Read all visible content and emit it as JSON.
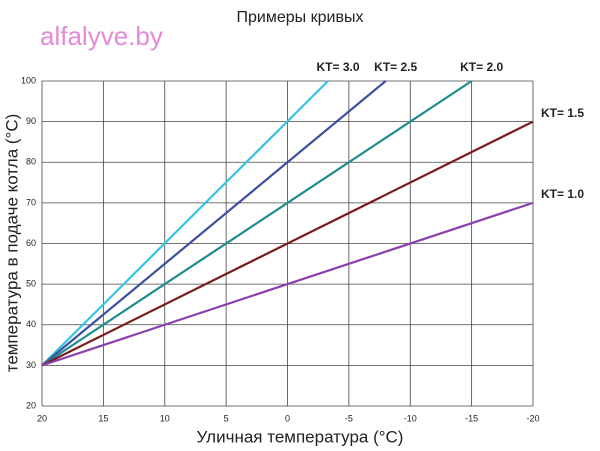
{
  "watermark": "alfalyve.by",
  "chart_data": {
    "type": "line",
    "title": "Примеры кривых",
    "x_label": "Уличная температура (°C)",
    "y_label": "температура в подаче котла (°C)",
    "xlim": [
      20,
      -20
    ],
    "xticks": [
      20,
      15,
      10,
      5,
      0,
      -5,
      -10,
      -15,
      -20
    ],
    "ylim": [
      20,
      100
    ],
    "yticks": [
      20,
      30,
      40,
      50,
      60,
      70,
      80,
      90,
      100
    ],
    "grid": true,
    "series": [
      {
        "name": "KT= 3.0",
        "color": "#35c3e3",
        "x": [
          20,
          -3.3
        ],
        "values": [
          30,
          100
        ]
      },
      {
        "name": "KT= 2.5",
        "color": "#3d4f9f",
        "x": [
          20,
          -8
        ],
        "values": [
          30,
          100
        ]
      },
      {
        "name": "KT= 2.0",
        "color": "#1f8b8b",
        "x": [
          20,
          -15
        ],
        "values": [
          30,
          100
        ]
      },
      {
        "name": "KT= 1.5",
        "color": "#7a1a1e",
        "x": [
          20,
          -20
        ],
        "values": [
          30,
          90
        ]
      },
      {
        "name": "KT= 1.0",
        "color": "#8b3fa9",
        "x": [
          20,
          -20
        ],
        "values": [
          30,
          70
        ]
      }
    ]
  }
}
